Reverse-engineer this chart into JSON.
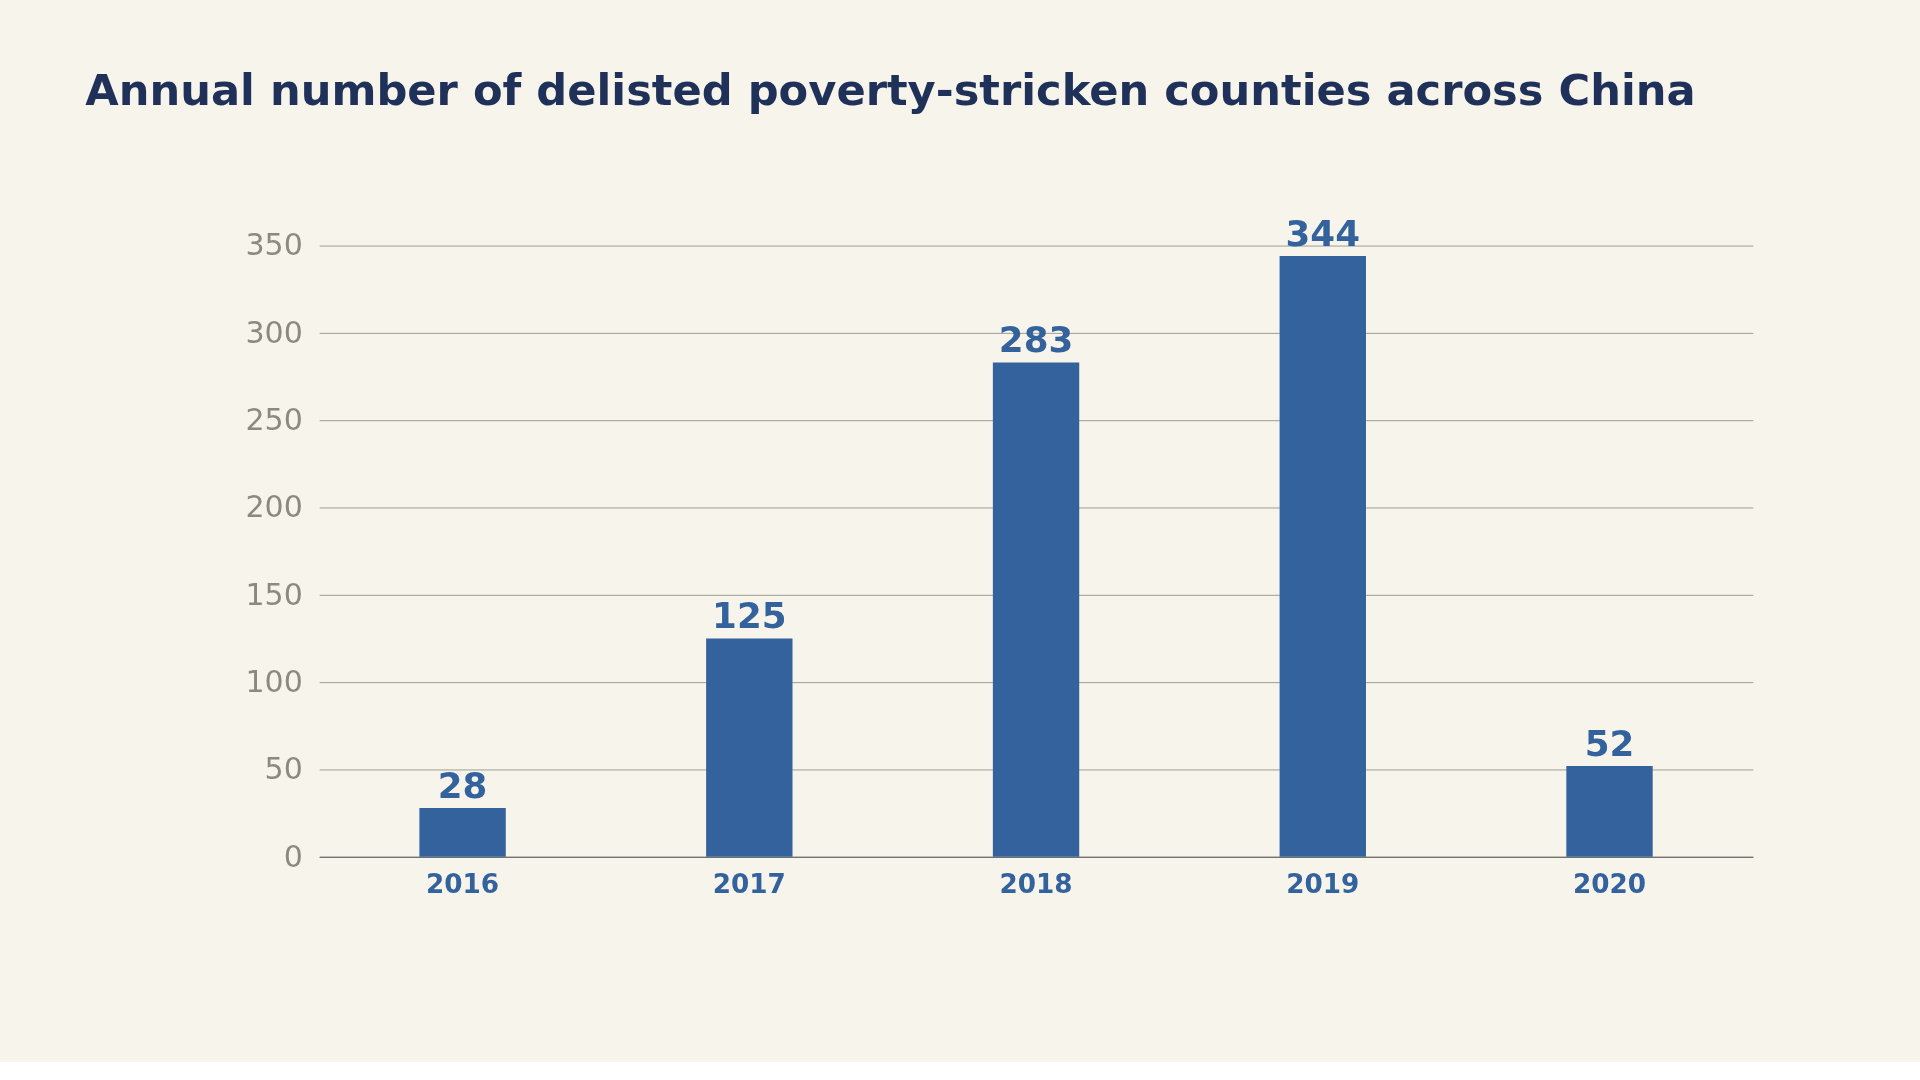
{
  "chart_data": {
    "type": "bar",
    "title": "Annual number of delisted poverty-stricken counties across China",
    "categories": [
      "2016",
      "2017",
      "2018",
      "2019",
      "2020"
    ],
    "values": [
      28,
      125,
      283,
      344,
      52
    ],
    "color": "#33629c",
    "ylim": [
      0,
      350
    ],
    "yticks": [
      0,
      50,
      100,
      150,
      200,
      250,
      300,
      350
    ],
    "grid": "y",
    "data_labels": true
  }
}
